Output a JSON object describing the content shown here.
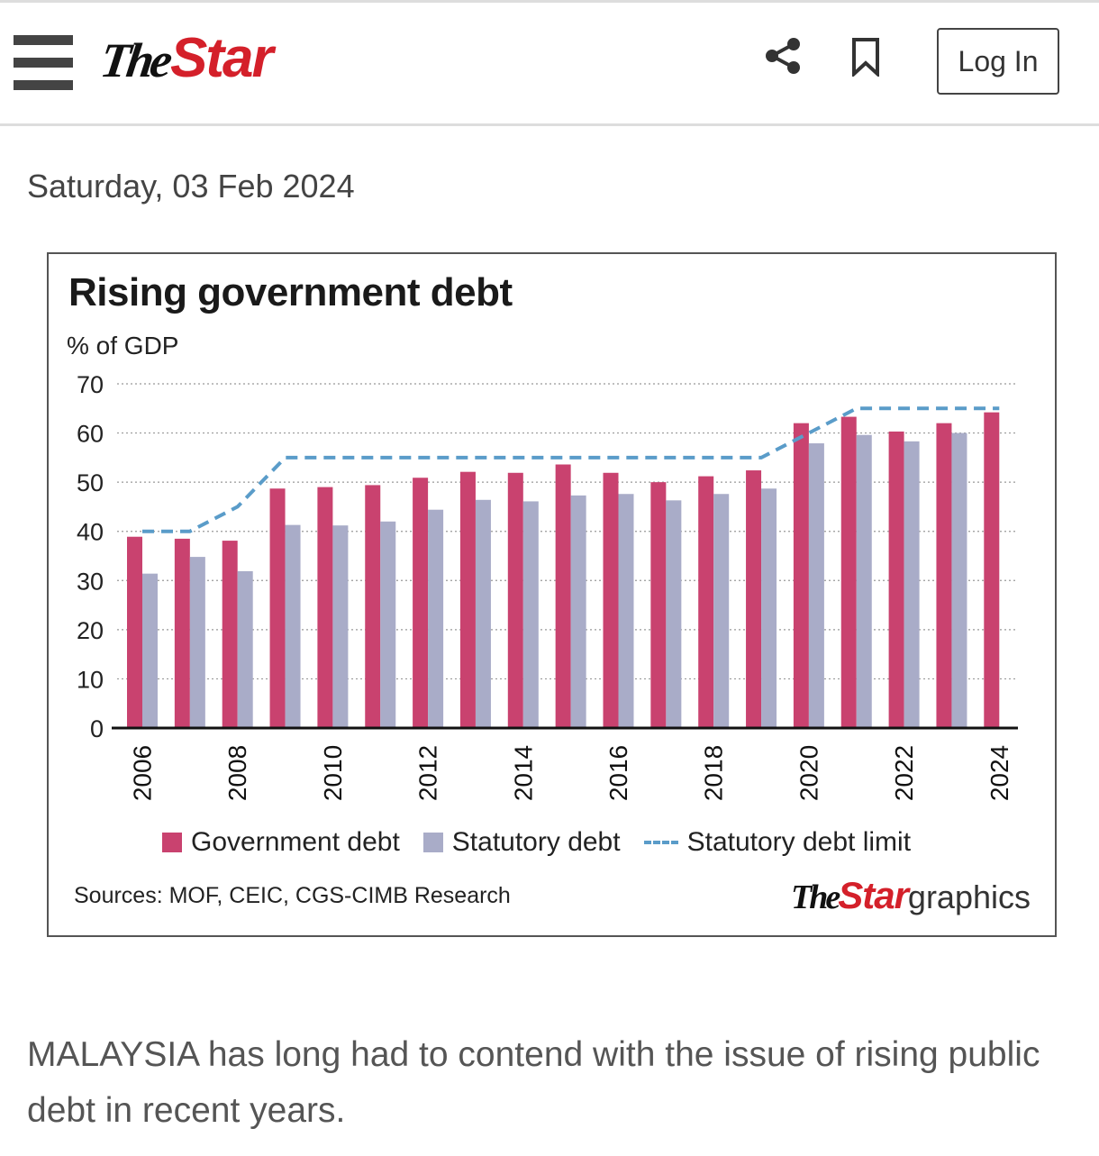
{
  "header": {
    "logo_the": "The",
    "logo_star": "Star",
    "login_label": "Log In"
  },
  "article": {
    "date": "Saturday, 03 Feb 2024",
    "lead": "MALAYSIA has long had to contend with the issue of rising public debt in recent years."
  },
  "colors": {
    "government": "#c9426f",
    "statutory": "#a9acc8",
    "limit": "#5a9cc9",
    "brand_red": "#d4202a"
  },
  "chart_data": {
    "type": "bar",
    "title": "Rising government debt",
    "ylabel": "% of GDP",
    "ylim": [
      0,
      70
    ],
    "yticks": [
      0,
      10,
      20,
      30,
      40,
      50,
      60,
      70
    ],
    "grid": true,
    "categories": [
      "2006",
      "2007",
      "2008",
      "2009",
      "2010",
      "2011",
      "2012",
      "2013",
      "2014",
      "2015",
      "2016",
      "2017",
      "2018",
      "2019",
      "2020",
      "2021",
      "2022",
      "2023",
      "2024"
    ],
    "xtick_labels": [
      "2006",
      "2008",
      "2010",
      "2012",
      "2014",
      "2016",
      "2018",
      "2020",
      "2022",
      "2024"
    ],
    "series": [
      {
        "name": "Government debt",
        "type": "bar",
        "values": [
          38.9,
          38.5,
          38.1,
          48.7,
          49.0,
          49.4,
          50.9,
          52.1,
          51.9,
          53.6,
          51.9,
          50.0,
          51.2,
          52.4,
          62.0,
          63.3,
          60.3,
          62.0,
          64.2
        ]
      },
      {
        "name": "Statutory debt",
        "type": "bar",
        "values": [
          31.4,
          34.8,
          31.9,
          41.3,
          41.2,
          42.0,
          44.4,
          46.4,
          46.1,
          47.3,
          47.6,
          46.3,
          47.6,
          48.7,
          57.9,
          59.6,
          58.3,
          60.0,
          null
        ]
      },
      {
        "name": "Statutory debt limit",
        "type": "line",
        "style": "dashed",
        "values": [
          40,
          40,
          45,
          55,
          55,
          55,
          55,
          55,
          55,
          55,
          55,
          55,
          55,
          55,
          60,
          65,
          65,
          65,
          65
        ]
      }
    ],
    "legend_position": "bottom",
    "source": "Sources: MOF, CEIC, CGS-CIMB Research",
    "credit_the": "The",
    "credit_star": "Star",
    "credit_graphics": "graphics"
  }
}
